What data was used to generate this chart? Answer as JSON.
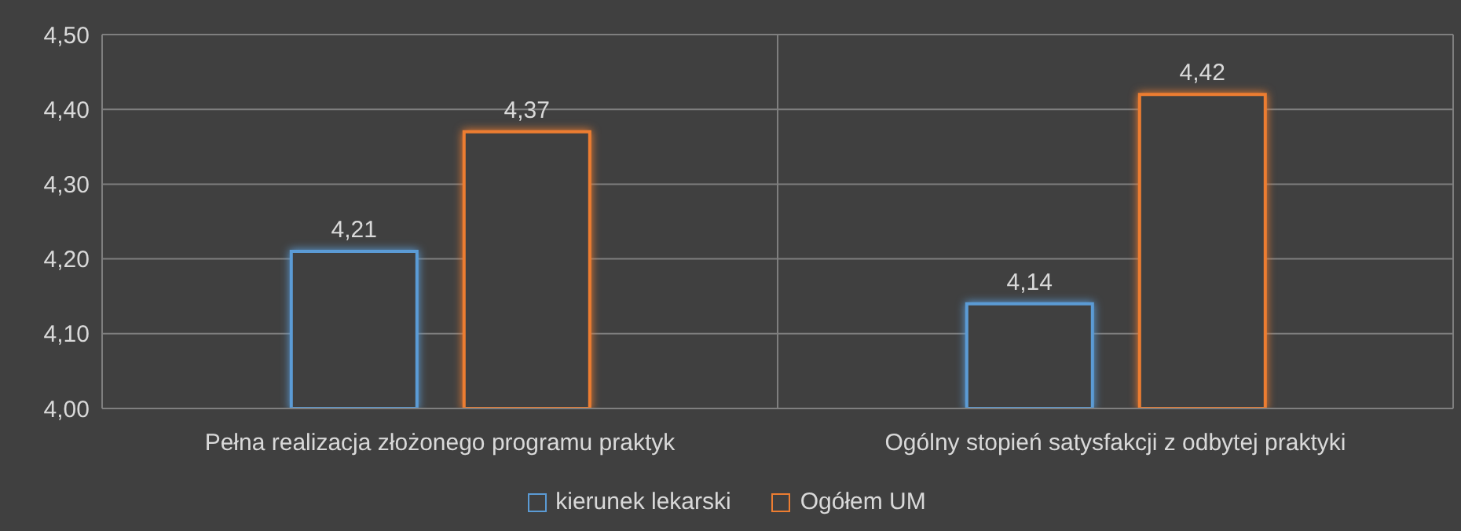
{
  "chart_data": {
    "type": "bar",
    "categories": [
      "Pełna realizacja złożonego programu praktyk",
      "Ogólny stopień satysfakcji z odbytej praktyki"
    ],
    "series": [
      {
        "name": "kierunek lekarski",
        "color": "#5b9bd5",
        "values": [
          4.21,
          4.14
        ],
        "value_labels": [
          "4,21",
          "4,14"
        ]
      },
      {
        "name": "Ogółem UM",
        "color": "#ed7d31",
        "values": [
          4.37,
          4.42
        ],
        "value_labels": [
          "4,37",
          "4,42"
        ]
      }
    ],
    "ylim": [
      4.0,
      4.5
    ],
    "yticks": [
      {
        "value": 4.0,
        "label": "4,00"
      },
      {
        "value": 4.1,
        "label": "4,10"
      },
      {
        "value": 4.2,
        "label": "4,20"
      },
      {
        "value": 4.3,
        "label": "4,30"
      },
      {
        "value": 4.4,
        "label": "4,40"
      },
      {
        "value": 4.5,
        "label": "4,50"
      }
    ],
    "grid": true,
    "legend": "bottom"
  }
}
